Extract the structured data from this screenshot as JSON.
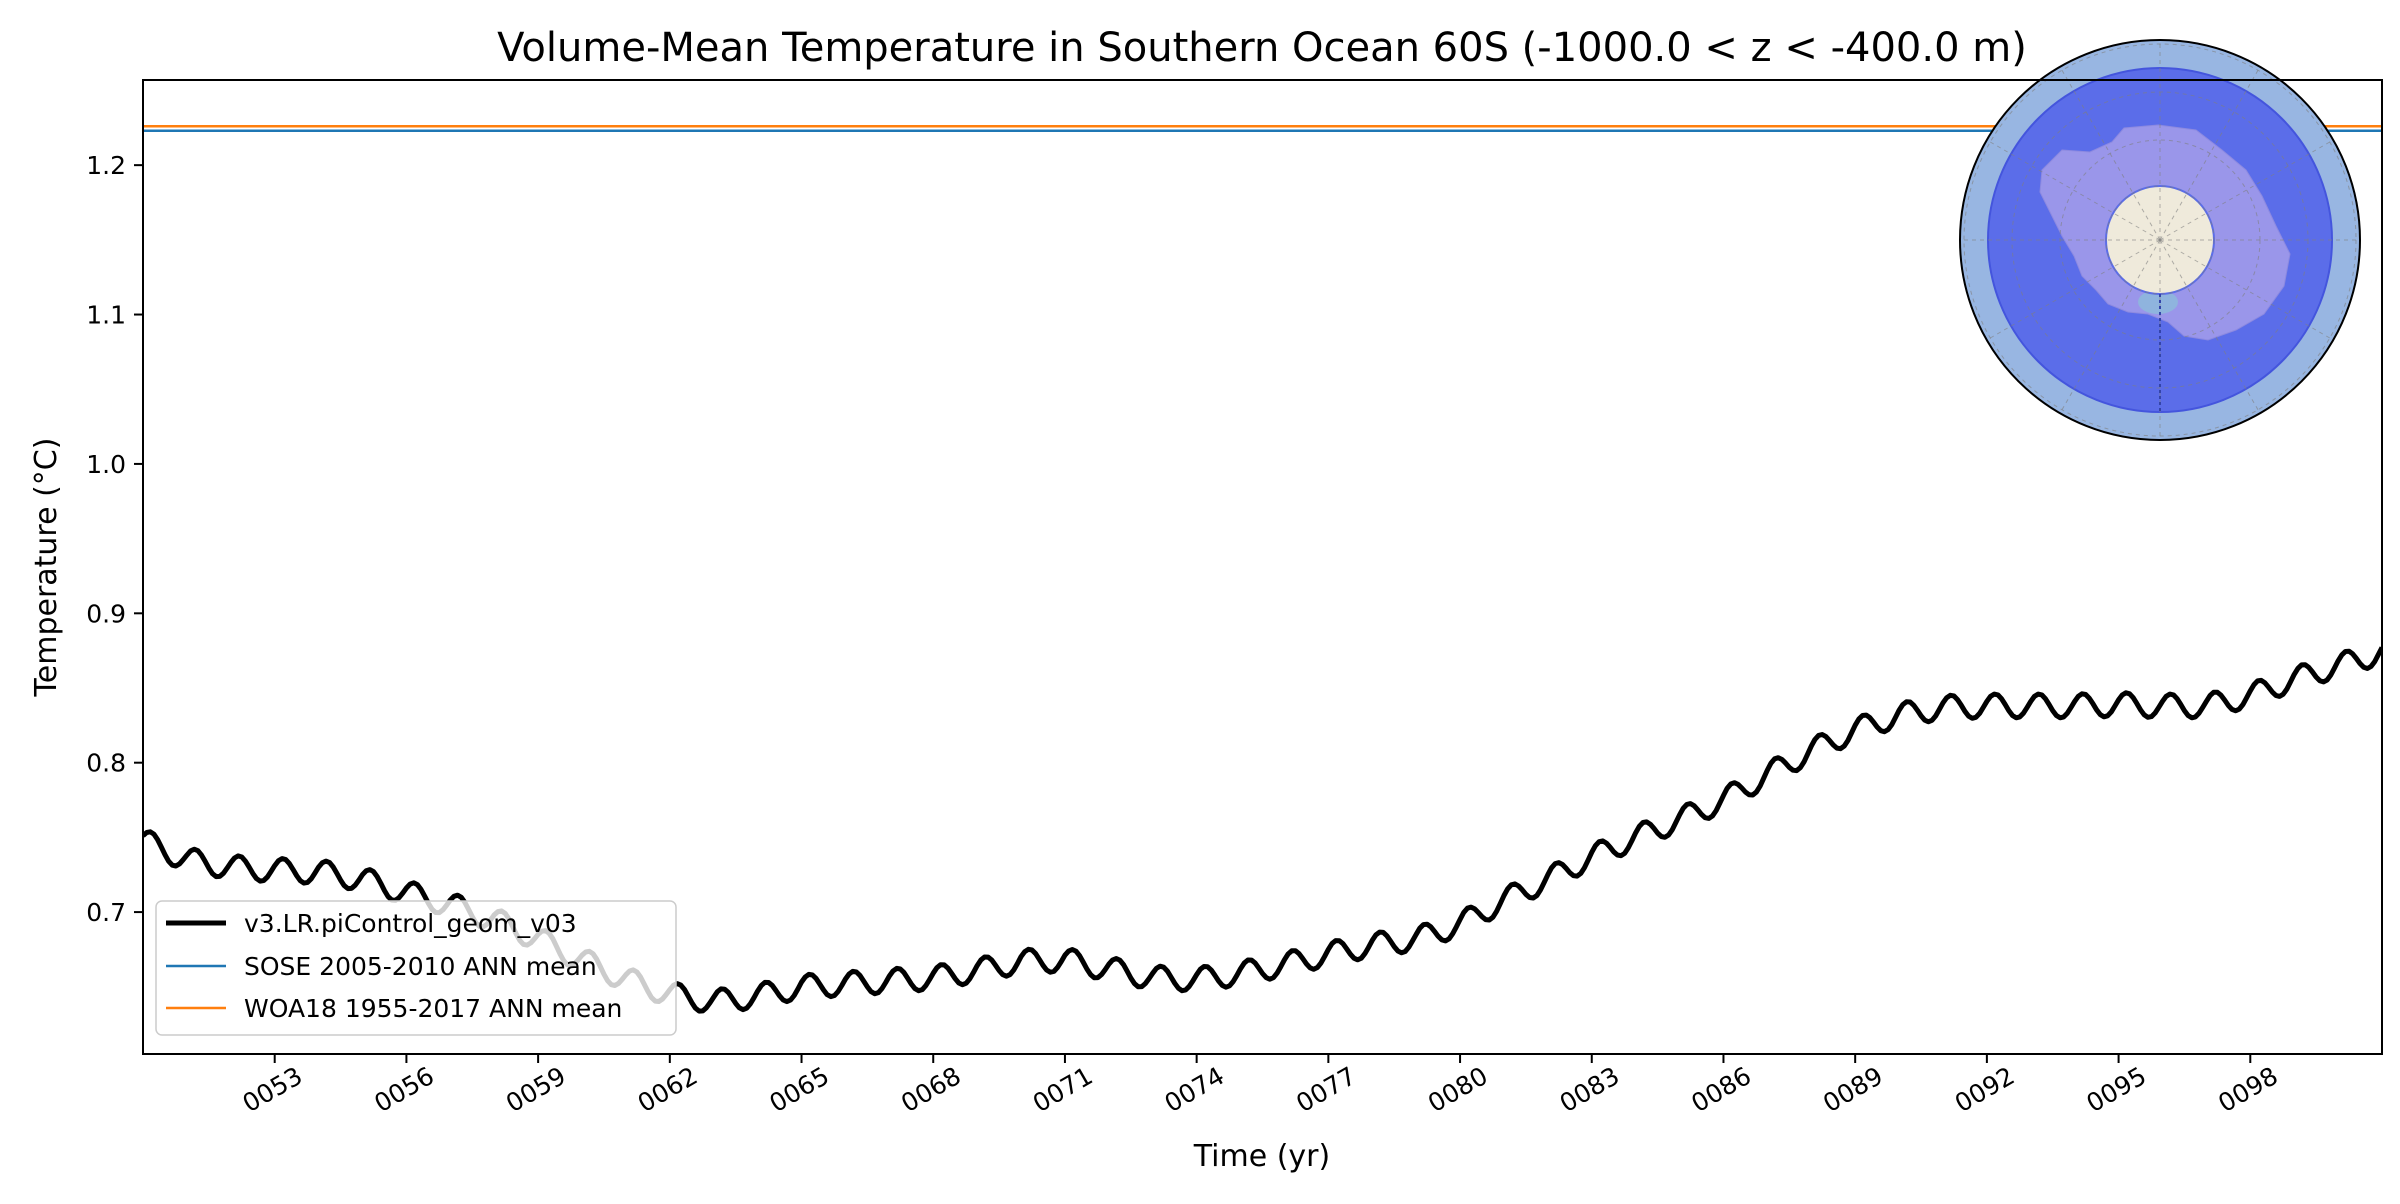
{
  "chart_data": {
    "type": "line",
    "title": "Volume-Mean Temperature in Southern Ocean 60S (-1000.0 < z < -400.0 m)",
    "xlabel": "Time (yr)",
    "ylabel": "Temperature (°C)",
    "xlim": [
      50.0,
      101.0
    ],
    "ylim": [
      0.605,
      1.257
    ],
    "x_ticks": [
      53,
      56,
      59,
      62,
      65,
      68,
      71,
      74,
      77,
      80,
      83,
      86,
      89,
      92,
      95,
      98
    ],
    "x_tick_labels": [
      "0053",
      "0056",
      "0059",
      "0062",
      "0065",
      "0068",
      "0071",
      "0074",
      "0077",
      "0080",
      "0083",
      "0086",
      "0089",
      "0092",
      "0095",
      "0098"
    ],
    "y_ticks": [
      0.7,
      0.8,
      0.9,
      1.0,
      1.1,
      1.2
    ],
    "y_tick_labels": [
      "0.7",
      "0.8",
      "0.9",
      "1.0",
      "1.1",
      "1.2"
    ],
    "grid": false,
    "legend_position": "lower-left",
    "series": [
      {
        "name": "v3.LR.piControl_geom_v03",
        "color": "#000000",
        "seasonal_amplitude": 0.008,
        "x": [
          50,
          51,
          52,
          53,
          54,
          55,
          56,
          57,
          58,
          59,
          60,
          61,
          62,
          63,
          64,
          65,
          66,
          67,
          68,
          69,
          70,
          71,
          72,
          73,
          74,
          75,
          76,
          77,
          78,
          79,
          80,
          81,
          82,
          83,
          84,
          85,
          86,
          87,
          88,
          89,
          90,
          91,
          92,
          93,
          94,
          95,
          96,
          97,
          98,
          99,
          100,
          101
        ],
        "values": [
          0.748,
          0.735,
          0.73,
          0.728,
          0.727,
          0.722,
          0.713,
          0.705,
          0.695,
          0.682,
          0.668,
          0.655,
          0.645,
          0.64,
          0.644,
          0.65,
          0.652,
          0.654,
          0.656,
          0.661,
          0.667,
          0.668,
          0.662,
          0.656,
          0.655,
          0.659,
          0.665,
          0.672,
          0.678,
          0.682,
          0.692,
          0.708,
          0.722,
          0.737,
          0.75,
          0.762,
          0.775,
          0.792,
          0.808,
          0.822,
          0.832,
          0.837,
          0.838,
          0.838,
          0.838,
          0.839,
          0.838,
          0.838,
          0.845,
          0.856,
          0.865,
          0.874
        ]
      },
      {
        "name": "SOSE 2005-2010 ANN mean",
        "color": "#1f77b4",
        "x": [
          50.0,
          101.0
        ],
        "values": [
          1.223,
          1.223
        ]
      },
      {
        "name": "WOA18 1955-2017 ANN mean",
        "color": "#ff7f0e",
        "x": [
          50.0,
          101.0
        ],
        "values": [
          1.226,
          1.226
        ]
      }
    ]
  },
  "inset_map": {
    "ocean_color": "#98b6e2",
    "region_color": "#5b6de9",
    "land_color": "#9a96ea",
    "pole_color": "#efeadb"
  }
}
